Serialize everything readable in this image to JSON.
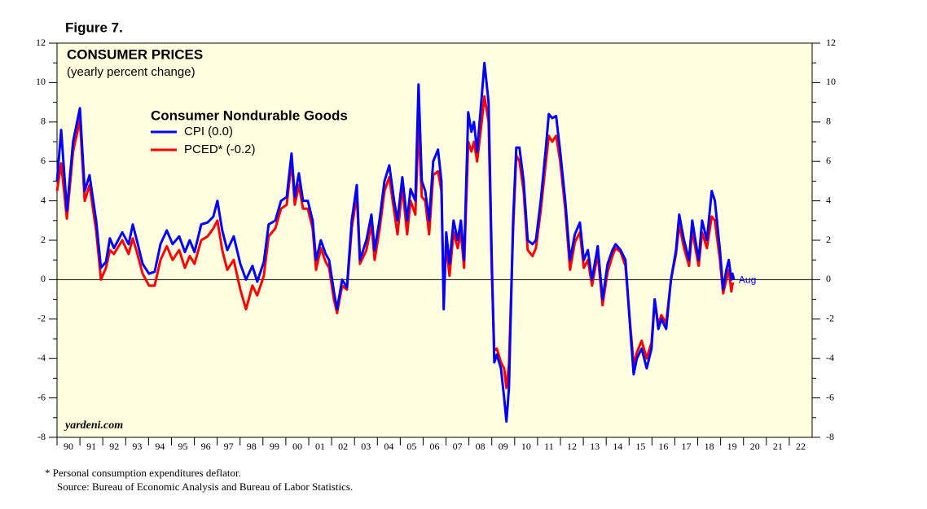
{
  "chart_data": {
    "type": "line",
    "figure_label": "Figure 7.",
    "title": "CONSUMER PRICES",
    "subtitle": "(yearly percent change)",
    "legend_title": "Consumer Nondurable Goods",
    "watermark": "yardeni.com",
    "annotation": "Aug",
    "footnotes": [
      "*  Personal consumption expenditures deflator.",
      "Source: Bureau of Economic Analysis and Bureau of Labor Statistics."
    ],
    "x": [
      1990.0,
      1990.18,
      1990.43,
      1990.7,
      1991.0,
      1991.21,
      1991.42,
      1991.71,
      1991.92,
      1992.14,
      1992.31,
      1992.49,
      1992.85,
      1993.13,
      1993.31,
      1993.49,
      1993.74,
      1994.02,
      1994.27,
      1994.52,
      1994.8,
      1995.05,
      1995.34,
      1995.59,
      1995.8,
      1996.01,
      1996.3,
      1996.58,
      1996.83,
      1997.01,
      1997.22,
      1997.44,
      1997.72,
      1998.01,
      1998.26,
      1998.54,
      1998.75,
      1999.04,
      1999.25,
      1999.54,
      1999.79,
      2000.04,
      2000.25,
      2000.39,
      2000.57,
      2000.75,
      2000.96,
      2001.17,
      2001.32,
      2001.53,
      2001.74,
      2001.89,
      2002.1,
      2002.24,
      2002.46,
      2002.67,
      2002.88,
      2003.1,
      2003.24,
      2003.52,
      2003.74,
      2003.88,
      2004.09,
      2004.31,
      2004.52,
      2004.73,
      2004.88,
      2005.09,
      2005.3,
      2005.45,
      2005.66,
      2005.8,
      2005.94,
      2006.09,
      2006.26,
      2006.44,
      2006.65,
      2006.8,
      2006.9,
      2007.01,
      2007.15,
      2007.33,
      2007.51,
      2007.65,
      2007.79,
      2007.97,
      2008.11,
      2008.22,
      2008.36,
      2008.54,
      2008.68,
      2008.86,
      2009.0,
      2009.11,
      2009.22,
      2009.4,
      2009.54,
      2009.64,
      2009.75,
      2009.93,
      2010.07,
      2010.21,
      2010.39,
      2010.57,
      2010.78,
      2010.93,
      2011.14,
      2011.35,
      2011.49,
      2011.64,
      2011.81,
      2011.99,
      2012.21,
      2012.42,
      2012.63,
      2012.85,
      2013.02,
      2013.2,
      2013.38,
      2013.63,
      2013.84,
      2014.06,
      2014.27,
      2014.41,
      2014.63,
      2014.84,
      2015.05,
      2015.2,
      2015.34,
      2015.55,
      2015.77,
      2015.98,
      2016.12,
      2016.28,
      2016.41,
      2016.62,
      2016.83,
      2017.05,
      2017.19,
      2017.4,
      2017.62,
      2017.76,
      2017.9,
      2018.04,
      2018.19,
      2018.4,
      2018.61,
      2018.75,
      2018.97,
      2019.11,
      2019.25,
      2019.36,
      2019.47,
      2019.52,
      2019.58
    ],
    "series": [
      {
        "name": "CPI (0.0)",
        "color": "#0000ff",
        "values": [
          5.0,
          7.6,
          3.5,
          7.0,
          8.7,
          4.5,
          5.3,
          3.0,
          0.6,
          0.9,
          2.1,
          1.6,
          2.4,
          1.8,
          2.8,
          2.0,
          0.8,
          0.3,
          0.4,
          1.8,
          2.5,
          1.8,
          2.2,
          1.4,
          2.0,
          1.4,
          2.8,
          2.9,
          3.2,
          4.0,
          2.5,
          1.5,
          2.2,
          0.8,
          0.0,
          0.7,
          -0.1,
          0.9,
          2.8,
          3.0,
          4.0,
          4.2,
          6.4,
          4.2,
          5.4,
          4.0,
          4.0,
          3.0,
          1.0,
          2.0,
          1.3,
          1.0,
          -0.6,
          -1.5,
          0.0,
          -0.4,
          3.0,
          4.8,
          1.0,
          2.0,
          3.3,
          1.5,
          3.0,
          5.0,
          5.8,
          4.0,
          3.0,
          5.2,
          3.0,
          4.6,
          4.0,
          9.9,
          5.0,
          4.5,
          3.0,
          6.0,
          6.6,
          5.0,
          -1.5,
          2.4,
          0.8,
          3.0,
          2.0,
          3.0,
          1.0,
          8.5,
          7.5,
          8.0,
          6.5,
          9.0,
          11.0,
          9.0,
          1.0,
          -4.2,
          -3.8,
          -4.5,
          -6.0,
          -7.2,
          -5.5,
          3.0,
          6.7,
          6.7,
          5.0,
          2.0,
          1.8,
          2.0,
          4.0,
          6.5,
          8.4,
          8.2,
          8.3,
          6.5,
          4.0,
          1.0,
          2.3,
          2.9,
          1.0,
          1.5,
          0.0,
          1.7,
          -1.0,
          0.8,
          1.5,
          1.8,
          1.5,
          1.0,
          -2.5,
          -4.8,
          -4.0,
          -3.5,
          -4.5,
          -3.5,
          -1.0,
          -2.5,
          -2.0,
          -2.5,
          0.0,
          1.5,
          3.3,
          2.0,
          1.0,
          3.0,
          2.0,
          1.0,
          3.0,
          2.0,
          4.5,
          4.0,
          1.5,
          -0.5,
          0.5,
          1.0,
          0.0,
          0.3,
          0.0
        ]
      },
      {
        "name": "PCED* (-0.2)",
        "color": "#ff0000",
        "values": [
          4.5,
          5.9,
          3.1,
          6.5,
          8.1,
          4.0,
          4.8,
          2.5,
          0.0,
          0.6,
          1.5,
          1.3,
          2.0,
          1.3,
          2.1,
          1.4,
          0.3,
          -0.3,
          -0.3,
          1.0,
          1.7,
          1.0,
          1.5,
          0.6,
          1.2,
          0.8,
          2.0,
          2.2,
          2.6,
          3.0,
          1.5,
          0.5,
          1.0,
          -0.5,
          -1.5,
          -0.3,
          -0.8,
          0.2,
          2.2,
          2.6,
          3.6,
          3.8,
          6.0,
          3.8,
          4.8,
          3.6,
          3.6,
          2.6,
          0.5,
          1.6,
          0.9,
          0.6,
          -1.0,
          -1.7,
          -0.3,
          -0.5,
          2.6,
          4.3,
          0.8,
          1.5,
          2.8,
          1.0,
          2.5,
          4.5,
          5.2,
          3.5,
          2.3,
          4.7,
          2.3,
          4.0,
          3.3,
          7.9,
          4.2,
          4.0,
          2.3,
          5.3,
          5.5,
          4.5,
          -1.0,
          1.8,
          0.2,
          2.4,
          1.6,
          2.4,
          0.6,
          7.0,
          6.5,
          7.0,
          6.0,
          7.8,
          9.3,
          8.0,
          0.5,
          -3.6,
          -3.5,
          -4.2,
          -4.5,
          -5.5,
          -4.3,
          2.5,
          6.3,
          6.0,
          4.5,
          1.5,
          1.2,
          1.6,
          3.5,
          5.8,
          7.3,
          7.0,
          7.3,
          6.0,
          3.6,
          0.5,
          1.9,
          2.4,
          0.6,
          1.0,
          -0.3,
          1.3,
          -1.3,
          0.4,
          1.2,
          1.6,
          1.4,
          0.7,
          -2.3,
          -4.3,
          -3.7,
          -3.1,
          -4.0,
          -3.2,
          -1.0,
          -2.3,
          -1.8,
          -2.2,
          0.0,
          1.3,
          2.8,
          1.6,
          0.7,
          2.5,
          1.6,
          0.7,
          2.4,
          1.6,
          3.2,
          3.0,
          1.0,
          -0.7,
          0.0,
          0.5,
          -0.6,
          -0.2,
          -0.2
        ]
      }
    ],
    "xlim": [
      1990,
      2023
    ],
    "xticks": [
      {
        "value": 1990,
        "label": "90"
      },
      {
        "value": 1991,
        "label": "91"
      },
      {
        "value": 1992,
        "label": "92"
      },
      {
        "value": 1993,
        "label": "93"
      },
      {
        "value": 1994,
        "label": "94"
      },
      {
        "value": 1995,
        "label": "95"
      },
      {
        "value": 1996,
        "label": "96"
      },
      {
        "value": 1997,
        "label": "97"
      },
      {
        "value": 1998,
        "label": "98"
      },
      {
        "value": 1999,
        "label": "99"
      },
      {
        "value": 2000,
        "label": "00"
      },
      {
        "value": 2001,
        "label": "01"
      },
      {
        "value": 2002,
        "label": "02"
      },
      {
        "value": 2003,
        "label": "03"
      },
      {
        "value": 2004,
        "label": "04"
      },
      {
        "value": 2005,
        "label": "05"
      },
      {
        "value": 2006,
        "label": "06"
      },
      {
        "value": 2007,
        "label": "07"
      },
      {
        "value": 2008,
        "label": "08"
      },
      {
        "value": 2009,
        "label": "09"
      },
      {
        "value": 2010,
        "label": "10"
      },
      {
        "value": 2011,
        "label": "11"
      },
      {
        "value": 2012,
        "label": "12"
      },
      {
        "value": 2013,
        "label": "13"
      },
      {
        "value": 2014,
        "label": "14"
      },
      {
        "value": 2015,
        "label": "15"
      },
      {
        "value": 2016,
        "label": "16"
      },
      {
        "value": 2017,
        "label": "17"
      },
      {
        "value": 2018,
        "label": "18"
      },
      {
        "value": 2019,
        "label": "19"
      },
      {
        "value": 2020,
        "label": "20"
      },
      {
        "value": 2021,
        "label": "21"
      },
      {
        "value": 2022,
        "label": "22"
      }
    ],
    "ylim": [
      -8,
      12
    ],
    "yticks": [
      -8,
      -6,
      -4,
      -2,
      0,
      2,
      4,
      6,
      8,
      10,
      12
    ],
    "zero_line": true,
    "background": "#ffffe0"
  }
}
